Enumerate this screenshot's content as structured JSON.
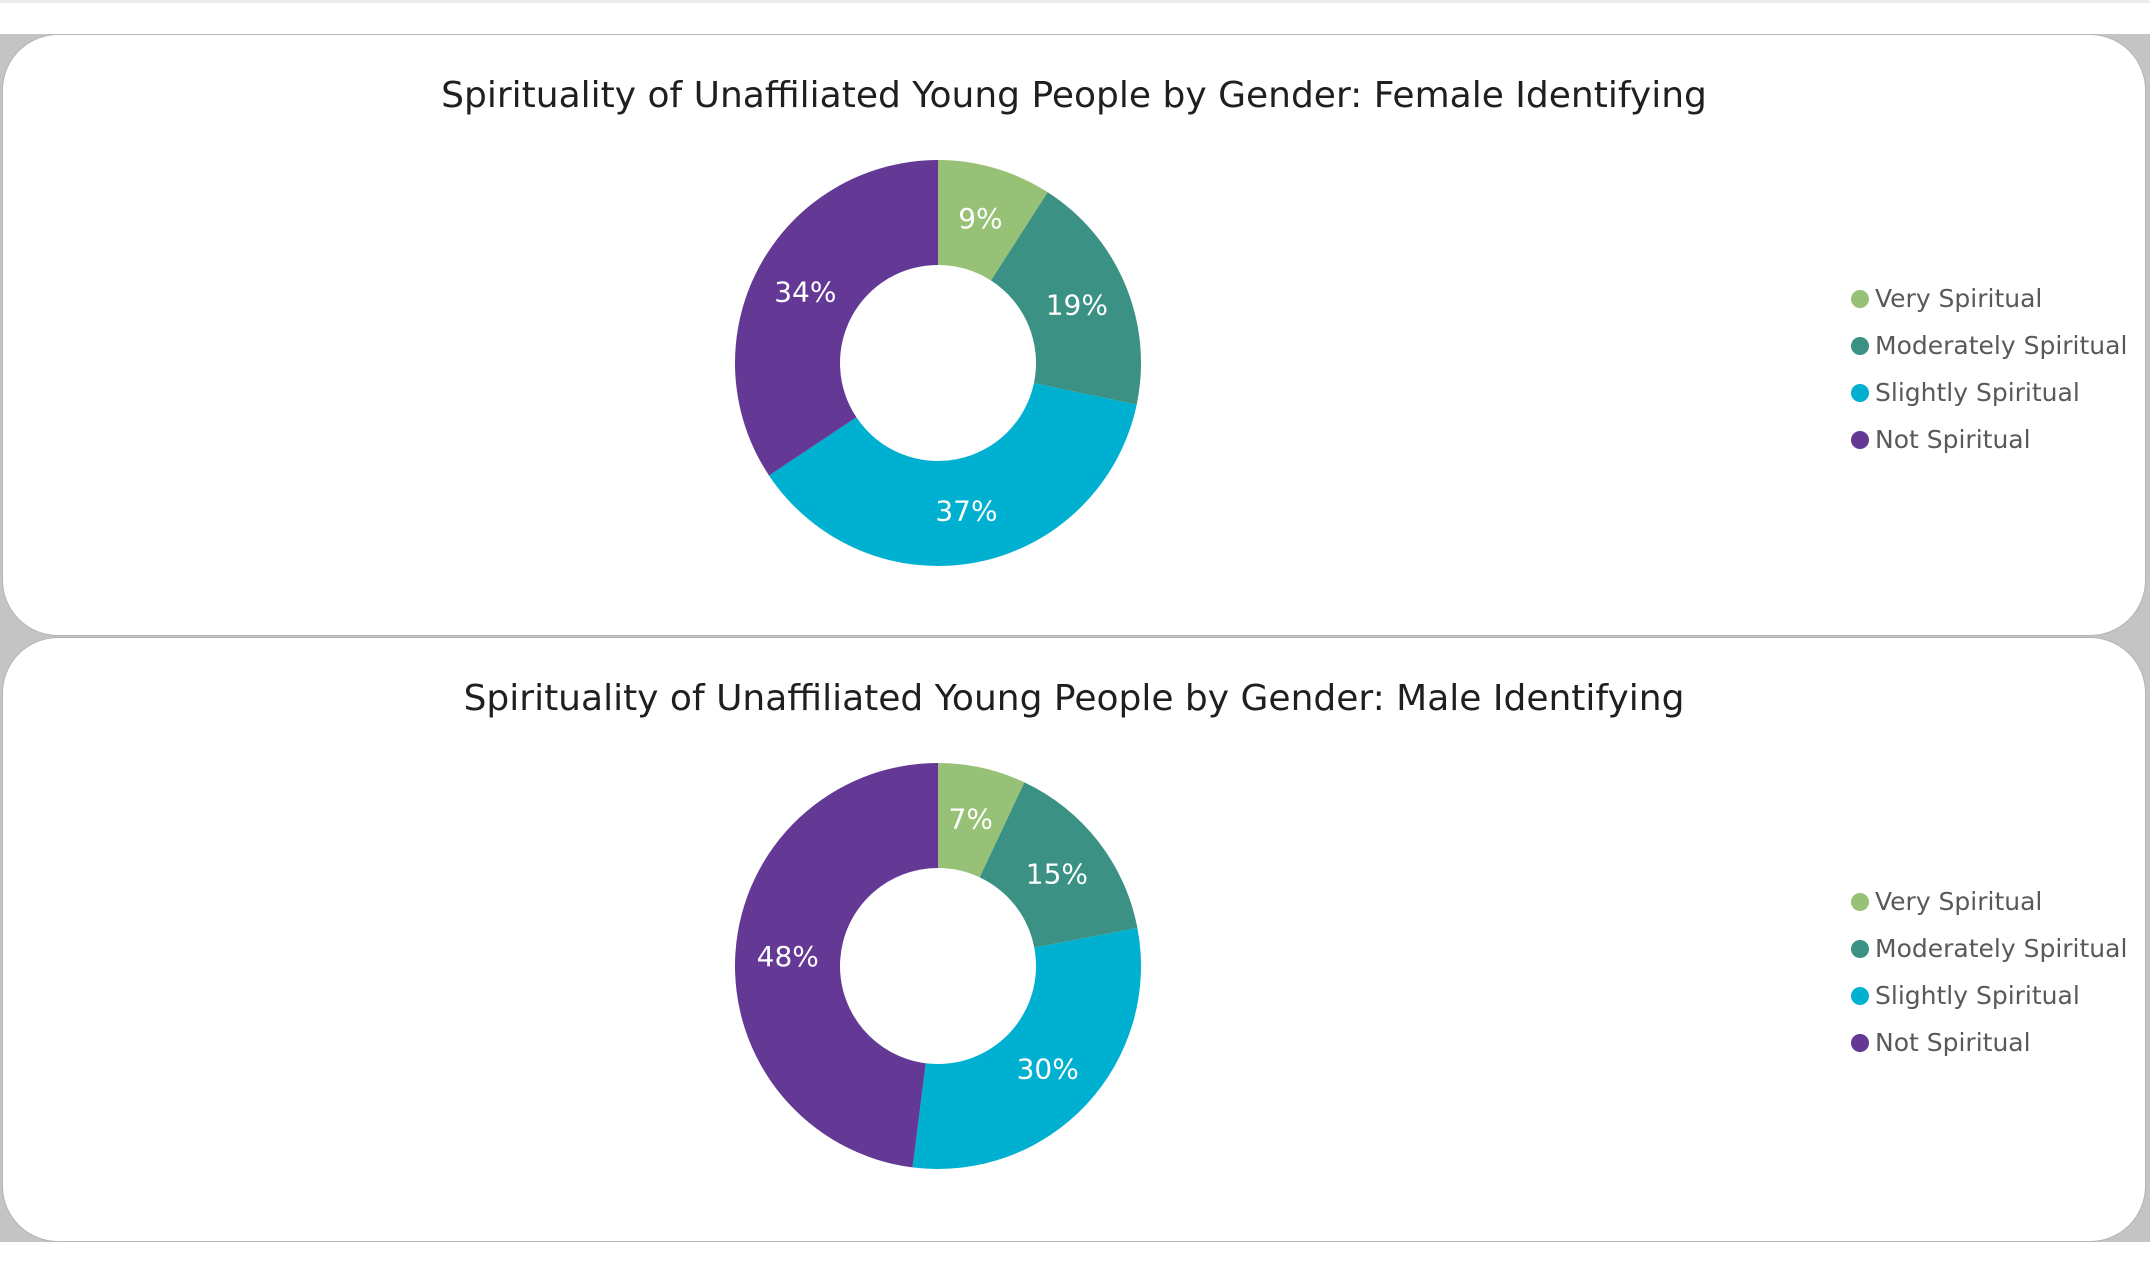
{
  "colors": {
    "very_spiritual": "#96c176",
    "moderately_spiritual": "#3a9184",
    "slightly_spiritual": "#00b0d0",
    "not_spiritual": "#643895"
  },
  "chart_data": [
    {
      "type": "pie",
      "title": "Spirituality of Unaffiliated Young People by Gender: Female Identifying",
      "categories": [
        "Very Spiritual",
        "Moderately Spiritual",
        "Slightly Spiritual",
        "Not Spiritual"
      ],
      "values": [
        9,
        19,
        37,
        34
      ],
      "data_labels": [
        "9%",
        "19%",
        "37%",
        "34%"
      ],
      "unit": "%",
      "donut": true,
      "legend_position": "right"
    },
    {
      "type": "pie",
      "title": "Spirituality of Unaffiliated Young People by Gender: Male Identifying",
      "categories": [
        "Very Spiritual",
        "Moderately Spiritual",
        "Slightly Spiritual",
        "Not Spiritual"
      ],
      "values": [
        7,
        15,
        30,
        48
      ],
      "data_labels": [
        "7%",
        "15%",
        "30%",
        "48%"
      ],
      "unit": "%",
      "donut": true,
      "legend_position": "right"
    }
  ]
}
